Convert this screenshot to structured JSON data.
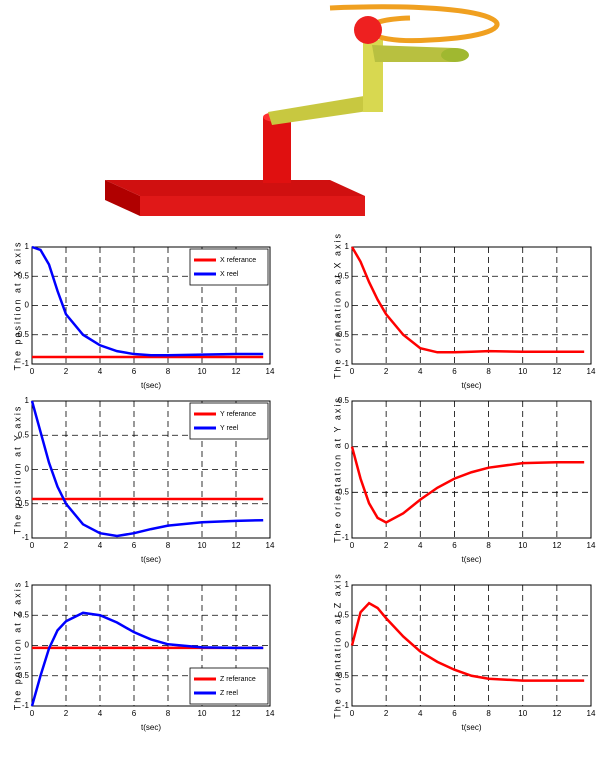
{
  "chart_data": [
    {
      "type": "line",
      "x": [
        0,
        0.5,
        1,
        1.5,
        2,
        3,
        4,
        5,
        6,
        7,
        8,
        10,
        12,
        13.6
      ],
      "xlim": [
        0,
        14
      ],
      "xticks": [
        0,
        2,
        4,
        6,
        8,
        10,
        12,
        14
      ],
      "ylim": [
        -1,
        1
      ],
      "yticks": [
        -1,
        -0.5,
        0,
        0.5,
        1
      ],
      "grid": true,
      "xlabel": "t(sec)",
      "ylabel": "The position at X axis",
      "legend": "upper right",
      "series": [
        {
          "name": "X referance",
          "color": "#ff0000",
          "values": [
            -0.88,
            -0.88,
            -0.88,
            -0.88,
            -0.88,
            -0.88,
            -0.88,
            -0.88,
            -0.88,
            -0.88,
            -0.88,
            -0.88,
            -0.88,
            -0.88
          ]
        },
        {
          "name": "X reel",
          "color": "#0000ff",
          "values": [
            1,
            0.95,
            0.7,
            0.25,
            -0.15,
            -0.5,
            -0.68,
            -0.78,
            -0.83,
            -0.85,
            -0.85,
            -0.84,
            -0.83,
            -0.83
          ]
        }
      ]
    },
    {
      "type": "line",
      "x": [
        0,
        0.5,
        1,
        1.5,
        2,
        3,
        4,
        5,
        6,
        7,
        8,
        10,
        12,
        13.6
      ],
      "xlim": [
        0,
        14
      ],
      "xticks": [
        0,
        2,
        4,
        6,
        8,
        10,
        12,
        14
      ],
      "ylim": [
        -1,
        1
      ],
      "yticks": [
        -1,
        -0.5,
        0,
        0.5,
        1
      ],
      "grid": true,
      "xlabel": "t(sec)",
      "ylabel": "The orientation at X axis",
      "series": [
        {
          "color": "#ff0000",
          "values": [
            1,
            0.75,
            0.4,
            0.1,
            -0.15,
            -0.5,
            -0.73,
            -0.8,
            -0.8,
            -0.79,
            -0.78,
            -0.79,
            -0.79,
            -0.79
          ]
        }
      ]
    },
    {
      "type": "line",
      "x": [
        0,
        0.5,
        1,
        1.5,
        2,
        3,
        4,
        5,
        6,
        7,
        8,
        10,
        12,
        13.6
      ],
      "xlim": [
        0,
        14
      ],
      "xticks": [
        0,
        2,
        4,
        6,
        8,
        10,
        12,
        14
      ],
      "ylim": [
        -1,
        1
      ],
      "yticks": [
        -1,
        -0.5,
        0,
        0.5,
        1
      ],
      "grid": true,
      "xlabel": "t(sec)",
      "ylabel": "The position at Y axis",
      "legend": "upper right",
      "series": [
        {
          "name": "Y referance",
          "color": "#ff0000",
          "values": [
            -0.43,
            -0.43,
            -0.43,
            -0.43,
            -0.43,
            -0.43,
            -0.43,
            -0.43,
            -0.43,
            -0.43,
            -0.43,
            -0.43,
            -0.43,
            -0.43
          ]
        },
        {
          "name": "Y reel",
          "color": "#0000ff",
          "values": [
            1,
            0.55,
            0.1,
            -0.25,
            -0.5,
            -0.8,
            -0.93,
            -0.97,
            -0.93,
            -0.87,
            -0.82,
            -0.77,
            -0.75,
            -0.74
          ]
        }
      ]
    },
    {
      "type": "line",
      "x": [
        0,
        0.5,
        1,
        1.5,
        2,
        3,
        4,
        5,
        6,
        7,
        8,
        10,
        12,
        13.6
      ],
      "xlim": [
        0,
        14
      ],
      "xticks": [
        0,
        2,
        4,
        6,
        8,
        10,
        12,
        14
      ],
      "ylim": [
        -1,
        0.5
      ],
      "yticks": [
        -1,
        -0.5,
        0,
        0.5
      ],
      "grid": true,
      "xlabel": "t(sec)",
      "ylabel": "The orientation at Y axis",
      "series": [
        {
          "color": "#ff0000",
          "values": [
            0,
            -0.35,
            -0.62,
            -0.78,
            -0.83,
            -0.73,
            -0.58,
            -0.45,
            -0.35,
            -0.28,
            -0.23,
            -0.18,
            -0.17,
            -0.17
          ]
        }
      ]
    },
    {
      "type": "line",
      "x": [
        0,
        0.5,
        1,
        1.5,
        2,
        3,
        4,
        5,
        6,
        7,
        8,
        10,
        12,
        13.6
      ],
      "xlim": [
        0,
        14
      ],
      "xticks": [
        0,
        2,
        4,
        6,
        8,
        10,
        12,
        14
      ],
      "ylim": [
        -1,
        1
      ],
      "yticks": [
        -1,
        -0.5,
        0,
        0.5,
        1
      ],
      "grid": true,
      "xlabel": "t(sec)",
      "ylabel": "The position at Z axis",
      "legend": "lower right",
      "series": [
        {
          "name": "Z referance",
          "color": "#ff0000",
          "values": [
            -0.04,
            -0.04,
            -0.04,
            -0.04,
            -0.04,
            -0.04,
            -0.04,
            -0.04,
            -0.04,
            -0.04,
            -0.04,
            -0.04,
            -0.04,
            -0.04
          ]
        },
        {
          "name": "Z reel",
          "color": "#0000ff",
          "values": [
            -1,
            -0.5,
            -0.05,
            0.25,
            0.4,
            0.54,
            0.5,
            0.38,
            0.22,
            0.1,
            0.02,
            -0.03,
            -0.04,
            -0.04
          ]
        }
      ]
    },
    {
      "type": "line",
      "x": [
        0,
        0.5,
        1,
        1.5,
        2,
        3,
        4,
        5,
        6,
        7,
        8,
        10,
        12,
        13.6
      ],
      "xlim": [
        0,
        14
      ],
      "xticks": [
        0,
        2,
        4,
        6,
        8,
        10,
        12,
        14
      ],
      "ylim": [
        -1,
        1
      ],
      "yticks": [
        -1,
        -0.5,
        0,
        0.5,
        1
      ],
      "grid": true,
      "xlabel": "t(sec)",
      "ylabel": "The orientation at Z axis",
      "series": [
        {
          "color": "#ff0000",
          "values": [
            0,
            0.55,
            0.7,
            0.62,
            0.45,
            0.15,
            -0.1,
            -0.27,
            -0.4,
            -0.5,
            -0.55,
            -0.58,
            -0.58,
            -0.58
          ]
        }
      ]
    }
  ]
}
